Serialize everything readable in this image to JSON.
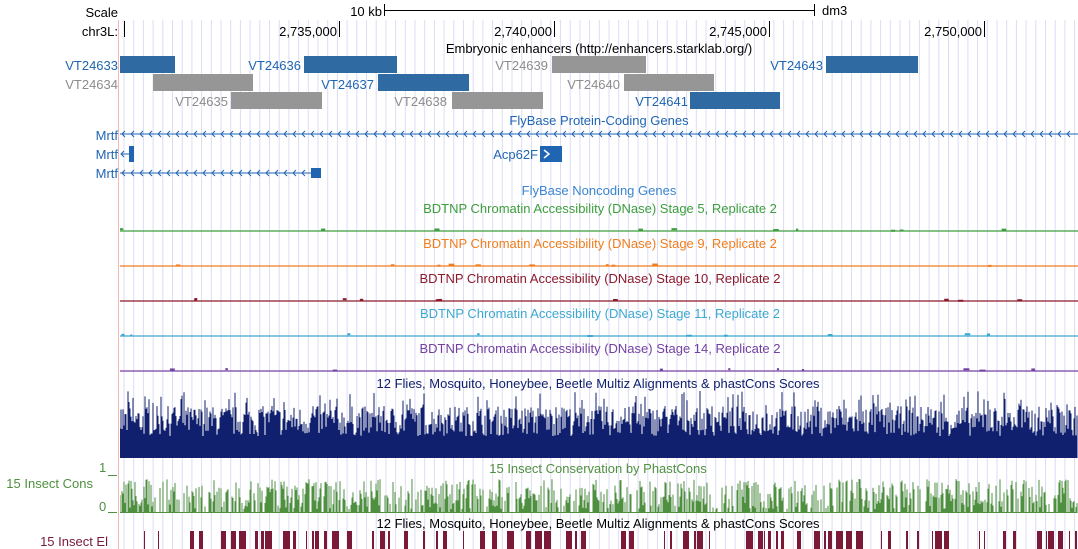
{
  "ruler": {
    "scale_label": "Scale",
    "scale_bar_label": "10 kb",
    "assembly": "dm3",
    "chrom_label": "chr3L:",
    "ticks": [
      "2,735,000",
      "2,740,000",
      "2,745,000",
      "2,750,000"
    ]
  },
  "enhancers": {
    "title": "Embryonic enhancers (http://enhancers.starklab.org/)",
    "items": [
      {
        "name": "VT24633",
        "color": "#2f6aa3"
      },
      {
        "name": "VT24634",
        "color": "#969696"
      },
      {
        "name": "VT24635",
        "color": "#969696"
      },
      {
        "name": "VT24636",
        "color": "#2f6aa3"
      },
      {
        "name": "VT24637",
        "color": "#2f6aa3"
      },
      {
        "name": "VT24638",
        "color": "#969696"
      },
      {
        "name": "VT24639",
        "color": "#969696"
      },
      {
        "name": "VT24640",
        "color": "#969696"
      },
      {
        "name": "VT24641",
        "color": "#2f6aa3"
      },
      {
        "name": "VT24643",
        "color": "#2f6aa3"
      }
    ]
  },
  "protein_genes": {
    "title": "FlyBase Protein-Coding Genes",
    "gene_a": "Mrtf",
    "gene_b": "Mrtf",
    "gene_c": "Mrtf",
    "gene_d": "Acp62F",
    "color": "#1f65b2"
  },
  "noncoding_genes": {
    "title": "FlyBase Noncoding Genes",
    "color": "#3a85cf"
  },
  "dnase_tracks": [
    {
      "title": "BDTNP Chromatin Accessibility (DNase) Stage 5, Replicate 2",
      "color": "#3c9e3c"
    },
    {
      "title": "BDTNP Chromatin Accessibility (DNase) Stage 9, Replicate 2",
      "color": "#f07d1e"
    },
    {
      "title": "BDTNP Chromatin Accessibility (DNase) Stage 10, Replicate 2",
      "color": "#8b1a2b"
    },
    {
      "title": "BDTNP Chromatin Accessibility (DNase) Stage 11, Replicate 2",
      "color": "#3ba8d2"
    },
    {
      "title": "BDTNP Chromatin Accessibility (DNase) Stage 14, Replicate 2",
      "color": "#7340a0"
    }
  ],
  "multiz": {
    "title": "12 Flies, Mosquito, Honeybee, Beetle Multiz Alignments & phastCons Scores",
    "color": "#10206e"
  },
  "phastcons": {
    "title": "15 Insect Conservation by PhastCons",
    "side_label": "15 Insect Cons",
    "axis_max": "1",
    "axis_min": "0",
    "color": "#4f8f40"
  },
  "elements": {
    "title": "12 Flies, Mosquito, Honeybee, Beetle Multiz Alignments & phastCons Scores",
    "side_label": "15 Insect El",
    "color": "#7a1a38"
  }
}
